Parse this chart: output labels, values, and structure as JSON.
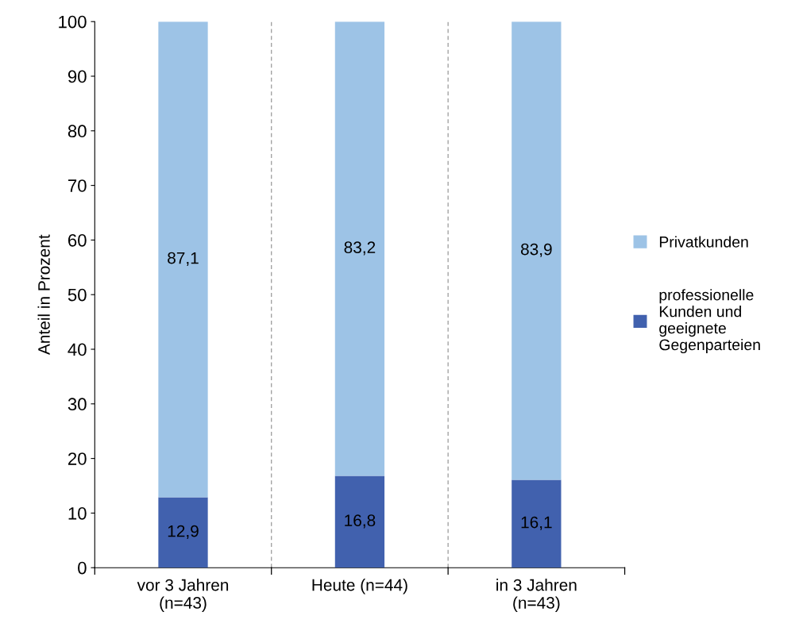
{
  "chart_data": {
    "type": "bar",
    "stacked": true,
    "ylabel": "Anteil in Prozent",
    "categories": [
      "vor 3 Jahren\n(n=43)",
      "Heute (n=44)",
      "in 3 Jahren\n(n=43)"
    ],
    "series": [
      {
        "name": "professionelle\nKunden und\ngeeignete\nGegenparteien",
        "color": "#4161ae",
        "values": [
          12.9,
          16.8,
          16.1
        ],
        "value_labels": [
          "12,9",
          "16,8",
          "16,1"
        ]
      },
      {
        "name": "Privatkunden",
        "color": "#9dc3e6",
        "values": [
          87.1,
          83.2,
          83.9
        ],
        "value_labels": [
          "87,1",
          "83,2",
          "83,9"
        ]
      }
    ],
    "ylim": [
      0,
      100
    ],
    "yticks": [
      0,
      10,
      20,
      30,
      40,
      50,
      60,
      70,
      80,
      90,
      100
    ],
    "grid": "x",
    "legend": "right"
  }
}
